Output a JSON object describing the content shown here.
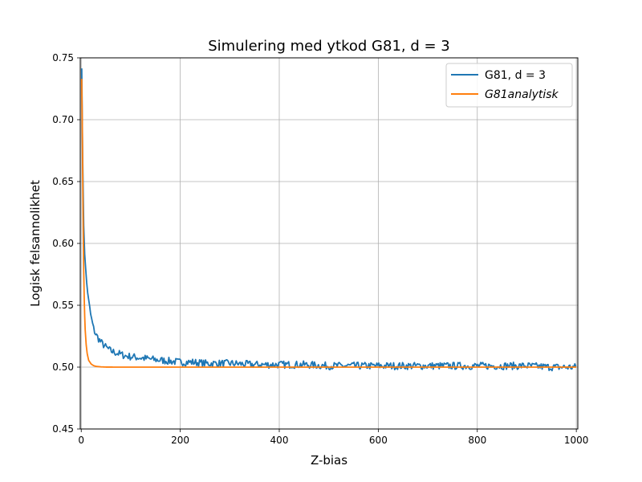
{
  "chart_data": {
    "type": "line",
    "title": "Simulering med ytkod G81, d = 3",
    "xlabel": "Z-bias",
    "ylabel": "Logisk felsannolikhet",
    "xlim": [
      -2,
      1003
    ],
    "ylim": [
      0.45,
      0.75
    ],
    "x_ticks": [
      0,
      200,
      400,
      600,
      800,
      1000
    ],
    "x_tick_labels": [
      "0",
      "200",
      "400",
      "600",
      "800",
      "1000"
    ],
    "y_ticks": [
      0.45,
      0.5,
      0.55,
      0.6,
      0.65,
      0.7,
      0.75
    ],
    "y_tick_labels": [
      "0.45",
      "0.50",
      "0.55",
      "0.60",
      "0.65",
      "0.70",
      "0.75"
    ],
    "grid": true,
    "legend_position": "top-right",
    "series": [
      {
        "name": "G81,  d = 3",
        "color": "#1f77b4",
        "x": [
          1,
          2,
          3,
          5,
          7,
          10,
          15,
          20,
          25,
          30,
          40,
          50,
          60,
          75,
          90,
          110,
          130,
          150,
          175,
          200,
          225,
          250,
          300,
          350,
          400,
          450,
          500,
          550,
          600,
          650,
          700,
          750,
          800,
          850,
          900,
          950,
          1000
        ],
        "y": [
          0.743,
          0.715,
          0.665,
          0.615,
          0.592,
          0.572,
          0.553,
          0.54,
          0.531,
          0.526,
          0.52,
          0.516,
          0.513,
          0.511,
          0.509,
          0.508,
          0.507,
          0.506,
          0.505,
          0.504,
          0.504,
          0.503,
          0.503,
          0.502,
          0.502,
          0.502,
          0.501,
          0.501,
          0.501,
          0.501,
          0.501,
          0.501,
          0.501,
          0.501,
          0.501,
          0.5,
          0.5
        ],
        "noise": 0.003
      },
      {
        "name": "G81analytisk",
        "color": "#ff7f0e",
        "x": [
          1,
          2,
          3,
          4,
          5,
          6,
          7,
          8,
          10,
          12,
          15,
          20,
          25,
          30,
          40,
          50,
          75,
          100,
          200,
          400,
          600,
          800,
          1000
        ],
        "y": [
          0.733,
          0.7,
          0.652,
          0.61,
          0.578,
          0.556,
          0.541,
          0.53,
          0.518,
          0.511,
          0.5055,
          0.5025,
          0.5012,
          0.5006,
          0.5002,
          0.50005,
          0.5,
          0.5,
          0.5,
          0.5,
          0.5,
          0.5,
          0.5
        ]
      }
    ]
  }
}
